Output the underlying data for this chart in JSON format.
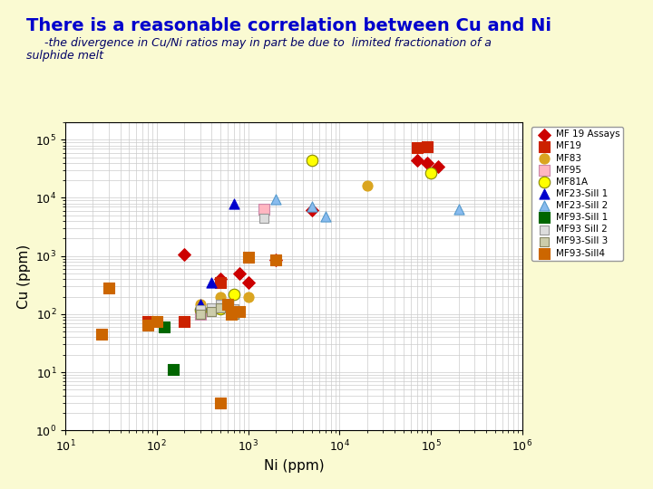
{
  "title": "There is a reasonable correlation between Cu and Ni",
  "subtitle": "     -the divergence in Cu/Ni ratios may in part be due to  limited fractionation of a\nsulphide melt",
  "xlabel": "Ni (ppm)",
  "ylabel": "Cu (ppm)",
  "bg_color": "#FAFAD2",
  "plot_bg_color": "#FFFFFF",
  "title_color": "#0000CC",
  "subtitle_color": "#000066",
  "series": [
    {
      "name": "MF 19 Assays",
      "marker": "D",
      "color": "#CC0000",
      "markersize": 7,
      "data": [
        [
          200,
          1050
        ],
        [
          500,
          400
        ],
        [
          800,
          500
        ],
        [
          1000,
          350
        ],
        [
          2000,
          850
        ],
        [
          5000,
          6200
        ],
        [
          70000,
          45000
        ],
        [
          90000,
          40000
        ],
        [
          120000,
          35000
        ]
      ]
    },
    {
      "name": "MF19",
      "marker": "s",
      "color": "#CC2200",
      "markersize": 8,
      "data": [
        [
          80,
          75
        ],
        [
          200,
          75
        ],
        [
          500,
          350
        ],
        [
          70000,
          72000
        ],
        [
          90000,
          75000
        ]
      ]
    },
    {
      "name": "MF83",
      "marker": "o",
      "color": "#DAA520",
      "markersize": 8,
      "data": [
        [
          300,
          150
        ],
        [
          500,
          200
        ],
        [
          1000,
          200
        ],
        [
          20000,
          16000
        ]
      ]
    },
    {
      "name": "MF95",
      "marker": "s",
      "color": "#FFB6C1",
      "markersize": 8,
      "facecolor": "#FFB6C1",
      "edgecolor": "#CC88AA",
      "data": [
        [
          300,
          100
        ],
        [
          1500,
          6500
        ]
      ]
    },
    {
      "name": "MF81A",
      "marker": "o",
      "color": "#FFFF00",
      "markersize": 9,
      "edgecolor": "#888800",
      "data": [
        [
          300,
          120
        ],
        [
          500,
          125
        ],
        [
          700,
          220
        ],
        [
          5000,
          45000
        ],
        [
          100000,
          27000
        ]
      ]
    },
    {
      "name": "MF23-Sill 1",
      "marker": "^",
      "color": "#0000CC",
      "markersize": 8,
      "data": [
        [
          300,
          150
        ],
        [
          400,
          350
        ],
        [
          700,
          8000
        ]
      ]
    },
    {
      "name": "MF23-Sill 2",
      "marker": "^",
      "color": "#88BBEE",
      "markersize": 8,
      "edgecolor": "#5599CC",
      "data": [
        [
          2000,
          9500
        ],
        [
          5000,
          7000
        ],
        [
          7000,
          4800
        ],
        [
          200000,
          6500
        ]
      ]
    },
    {
      "name": "MF93-Sill 1",
      "marker": "s",
      "color": "#006600",
      "markersize": 8,
      "data": [
        [
          120,
          60
        ],
        [
          150,
          11
        ]
      ]
    },
    {
      "name": "MF93 Sill 2",
      "marker": "s",
      "color": "#DDDDDD",
      "markersize": 7,
      "edgecolor": "#999999",
      "data": [
        [
          300,
          120
        ],
        [
          400,
          130
        ],
        [
          500,
          150
        ],
        [
          700,
          125
        ],
        [
          1500,
          4500
        ]
      ]
    },
    {
      "name": "MF93-Sill 3",
      "marker": "s",
      "color": "#CCCCAA",
      "markersize": 7,
      "edgecolor": "#888866",
      "data": [
        [
          300,
          100
        ],
        [
          400,
          110
        ],
        [
          500,
          130
        ],
        [
          700,
          100
        ]
      ]
    },
    {
      "name": "MF93-Sill4",
      "marker": "s",
      "color": "#CC6600",
      "markersize": 8,
      "data": [
        [
          25,
          45
        ],
        [
          30,
          280
        ],
        [
          80,
          65
        ],
        [
          100,
          75
        ],
        [
          500,
          3
        ],
        [
          600,
          150
        ],
        [
          650,
          100
        ],
        [
          700,
          110
        ],
        [
          800,
          110
        ],
        [
          1000,
          950
        ],
        [
          2000,
          850
        ]
      ]
    }
  ]
}
